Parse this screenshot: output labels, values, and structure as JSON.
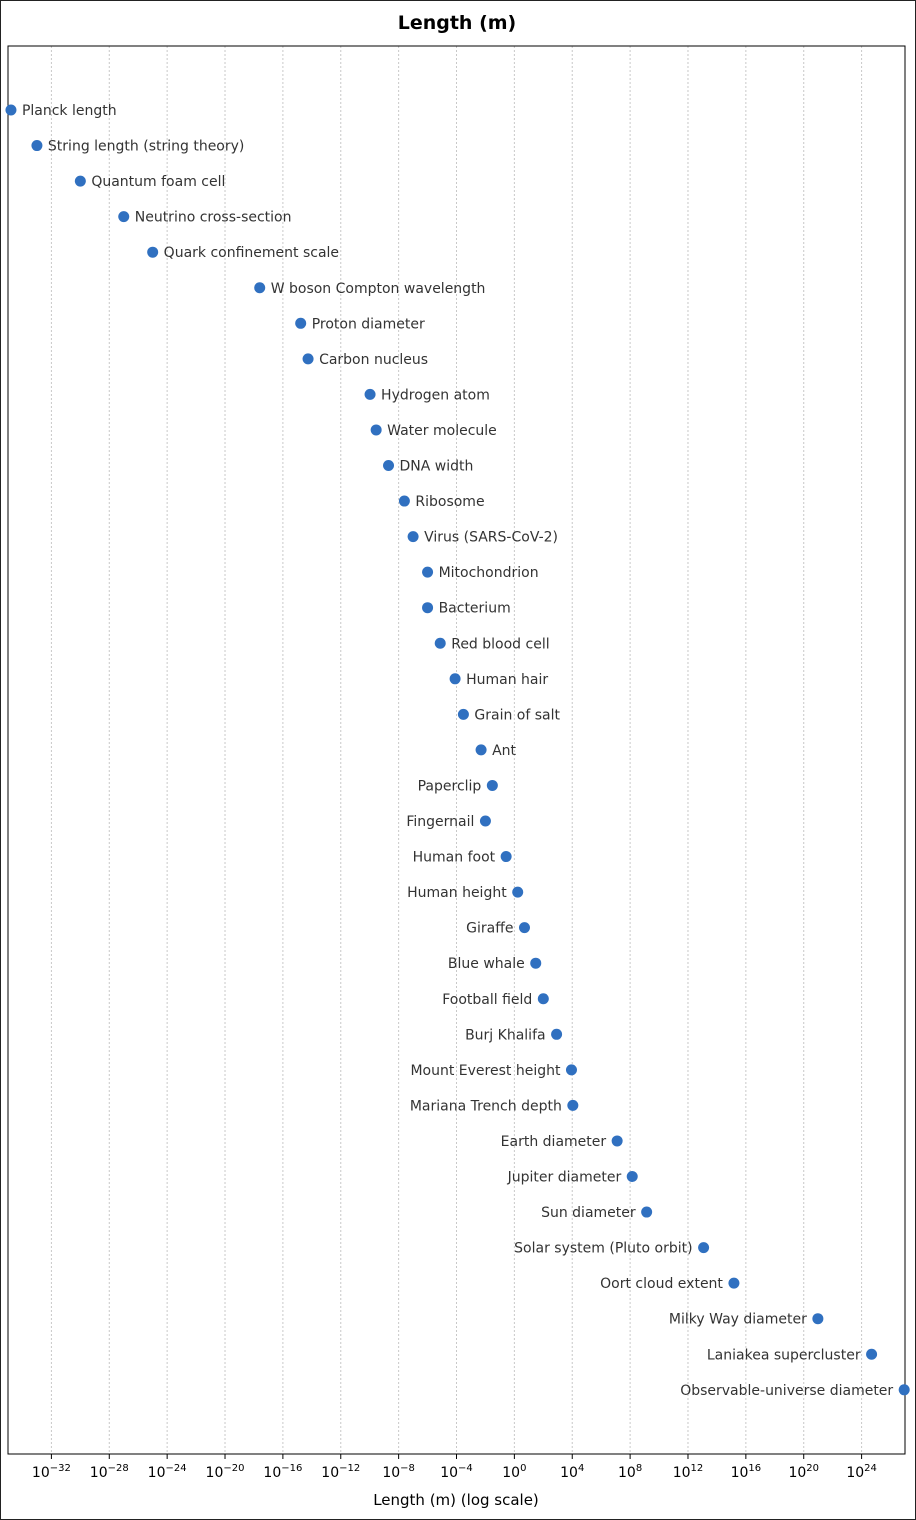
{
  "chart_data": {
    "type": "scatter",
    "title": "Length (m)",
    "xlabel": "Length (m) (log scale)",
    "ylabel": "",
    "xscale": "log",
    "xlim_exponent": [
      -35,
      27
    ],
    "x_tick_exponents": [
      -32,
      -28,
      -24,
      -20,
      -16,
      -12,
      -8,
      -4,
      0,
      4,
      8,
      12,
      16,
      20,
      24
    ],
    "x_tick_labels": [
      "10−32",
      "10−28",
      "10−24",
      "10−20",
      "10−16",
      "10−12",
      "10−8",
      "10−4",
      "100",
      "104",
      "108",
      "1012",
      "1016",
      "1020",
      "1024"
    ],
    "grid": "x-dashed",
    "marker_color": "#3070c0",
    "points": [
      {
        "name": "Planck length",
        "value": "1.6e-35",
        "label_side": "right"
      },
      {
        "name": "String length (string theory)",
        "value": "1e-33",
        "label_side": "right"
      },
      {
        "name": "Quantum foam cell",
        "value": "1e-30",
        "label_side": "right"
      },
      {
        "name": "Neutrino cross-section",
        "value": "1e-27",
        "label_side": "right"
      },
      {
        "name": "Quark confinement scale",
        "value": "1e-25",
        "label_side": "right"
      },
      {
        "name": "W boson Compton wavelength",
        "value": "2.5e-18",
        "label_side": "right"
      },
      {
        "name": "Proton diameter",
        "value": "1.7e-15",
        "label_side": "right"
      },
      {
        "name": "Carbon nucleus",
        "value": "5.5e-15",
        "label_side": "right"
      },
      {
        "name": "Hydrogen atom",
        "value": "1.06e-10",
        "label_side": "right"
      },
      {
        "name": "Water molecule",
        "value": "2.8e-10",
        "label_side": "right"
      },
      {
        "name": "DNA width",
        "value": "2e-9",
        "label_side": "right"
      },
      {
        "name": "Ribosome",
        "value": "2.5e-8",
        "label_side": "right"
      },
      {
        "name": "Virus (SARS-CoV-2)",
        "value": "1e-7",
        "label_side": "right"
      },
      {
        "name": "Mitochondrion",
        "value": "1e-6",
        "label_side": "right"
      },
      {
        "name": "Bacterium",
        "value": "1e-6",
        "label_side": "right"
      },
      {
        "name": "Red blood cell",
        "value": "7.5e-6",
        "label_side": "right"
      },
      {
        "name": "Human hair",
        "value": "8e-5",
        "label_side": "right"
      },
      {
        "name": "Grain of salt",
        "value": "3e-4",
        "label_side": "right"
      },
      {
        "name": "Ant",
        "value": "5e-3",
        "label_side": "right"
      },
      {
        "name": "Paperclip",
        "value": "0.03",
        "label_side": "left"
      },
      {
        "name": "Fingernail",
        "value": "0.01",
        "label_side": "left"
      },
      {
        "name": "Human foot",
        "value": "0.27",
        "label_side": "left"
      },
      {
        "name": "Human height",
        "value": "1.7",
        "label_side": "left"
      },
      {
        "name": "Giraffe",
        "value": "5",
        "label_side": "left"
      },
      {
        "name": "Blue whale",
        "value": "30",
        "label_side": "left"
      },
      {
        "name": "Football field",
        "value": "100",
        "label_side": "left"
      },
      {
        "name": "Burj Khalifa",
        "value": "828",
        "label_side": "left"
      },
      {
        "name": "Mount Everest height",
        "value": "8849",
        "label_side": "left"
      },
      {
        "name": "Mariana Trench depth",
        "value": "10994",
        "label_side": "left"
      },
      {
        "name": "Earth diameter",
        "value": "1.27e7",
        "label_side": "left"
      },
      {
        "name": "Jupiter diameter",
        "value": "1.4e8",
        "label_side": "left"
      },
      {
        "name": "Sun diameter",
        "value": "1.39e9",
        "label_side": "left"
      },
      {
        "name": "Solar system (Pluto orbit)",
        "value": "1.2e13",
        "label_side": "left"
      },
      {
        "name": "Oort cloud extent",
        "value": "1.5e15",
        "label_side": "left"
      },
      {
        "name": "Milky Way diameter",
        "value": "9.5e20",
        "label_side": "left"
      },
      {
        "name": "Laniakea supercluster",
        "value": "4.9e24",
        "label_side": "left"
      },
      {
        "name": "Observable-universe diameter",
        "value": "8.8e26",
        "label_side": "left"
      }
    ]
  }
}
